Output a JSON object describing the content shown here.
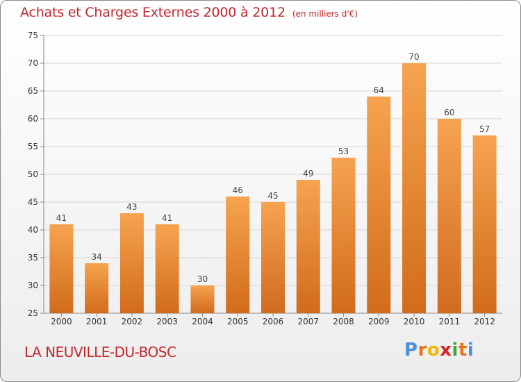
{
  "header": {
    "title": "Achats et Charges Externes 2000 à 2012",
    "subtitle": "(en milliers d'€)"
  },
  "footer": {
    "commune": "LA NEUVILLE-DU-BOSC",
    "brand": "Proxiti",
    "brand_colors": [
      "#4a90d9",
      "#e8731a",
      "#f2b705",
      "#d6232a",
      "#3aa935",
      "#e8731a",
      "#4a90d9"
    ]
  },
  "colors": {
    "bar_top": "#f6a34f",
    "bar_bottom": "#d16c1c",
    "grid": "#d4d4d4",
    "title": "#c0272d"
  },
  "chart_data": {
    "type": "bar",
    "title": "Achats et Charges Externes 2000 à 2012",
    "subtitle": "(en milliers d'€)",
    "categories": [
      "2000",
      "2001",
      "2002",
      "2003",
      "2004",
      "2005",
      "2006",
      "2007",
      "2008",
      "2009",
      "2010",
      "2011",
      "2012"
    ],
    "values": [
      41,
      34,
      43,
      41,
      30,
      46,
      45,
      49,
      53,
      64,
      70,
      60,
      57
    ],
    "ylim": [
      25,
      75
    ],
    "yticks": [
      25,
      30,
      35,
      40,
      45,
      50,
      55,
      60,
      65,
      70,
      75
    ],
    "grid": true,
    "show_value_labels": true
  }
}
